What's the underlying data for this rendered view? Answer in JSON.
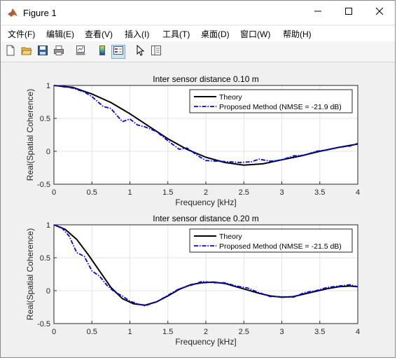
{
  "window": {
    "title": "Figure 1"
  },
  "menu": [
    {
      "label": "文件(F)"
    },
    {
      "label": "编辑(E)"
    },
    {
      "label": "查看(V)"
    },
    {
      "label": "插入(I)"
    },
    {
      "label": "工具(T)"
    },
    {
      "label": "桌面(D)"
    },
    {
      "label": "窗口(W)"
    },
    {
      "label": "帮助(H)"
    }
  ],
  "toolbar": [
    {
      "icon": "new-figure-icon"
    },
    {
      "icon": "open-file-icon"
    },
    {
      "icon": "save-icon"
    },
    {
      "icon": "print-icon"
    },
    {
      "icon": "link-plot-icon"
    },
    {
      "icon": "colorbar-icon"
    },
    {
      "icon": "legend-icon"
    },
    {
      "icon": "edit-plot-cursor-icon"
    },
    {
      "icon": "property-inspector-icon"
    }
  ],
  "colors": {
    "theory": "#000000",
    "proposed": "#0000ff"
  },
  "chart_data": [
    {
      "type": "line",
      "title": "Inter sensor distance 0.10 m",
      "xlabel": "Frequency [kHz]",
      "ylabel": "Real(Spatial Coherence)",
      "xlim": [
        0,
        4
      ],
      "ylim": [
        -0.5,
        1
      ],
      "xticks": [
        "0",
        "0.5",
        "1",
        "1.5",
        "2",
        "2.5",
        "3",
        "3.5",
        "4"
      ],
      "yticks": [
        "1",
        "0.5",
        "0",
        "-0.5"
      ],
      "grid": true,
      "legend_position": "top-right",
      "series": [
        {
          "name": "Theory",
          "x": [
            0,
            0.25,
            0.5,
            0.75,
            1.0,
            1.25,
            1.5,
            1.75,
            2.0,
            2.25,
            2.5,
            2.75,
            3.0,
            3.25,
            3.5,
            3.75,
            4.0
          ],
          "y": [
            1.0,
            0.97,
            0.87,
            0.74,
            0.57,
            0.38,
            0.19,
            0.03,
            -0.09,
            -0.17,
            -0.21,
            -0.19,
            -0.13,
            -0.07,
            0.0,
            0.06,
            0.11
          ]
        },
        {
          "name": "Proposed Method (NMSE = -21.9 dB)",
          "x": [
            0,
            0.25,
            0.4,
            0.5,
            0.65,
            0.75,
            0.9,
            1.0,
            1.1,
            1.2,
            1.35,
            1.5,
            1.65,
            1.75,
            1.9,
            2.0,
            2.15,
            2.3,
            2.45,
            2.6,
            2.7,
            2.85,
            3.0,
            3.15,
            3.3,
            3.45,
            3.6,
            3.75,
            3.9,
            4.0
          ],
          "y": [
            1.0,
            0.96,
            0.9,
            0.83,
            0.68,
            0.65,
            0.45,
            0.49,
            0.4,
            0.37,
            0.3,
            0.16,
            0.03,
            0.05,
            -0.07,
            -0.14,
            -0.15,
            -0.16,
            -0.17,
            -0.16,
            -0.12,
            -0.15,
            -0.13,
            -0.07,
            -0.06,
            0.0,
            0.02,
            0.06,
            0.08,
            0.12
          ]
        }
      ]
    },
    {
      "type": "line",
      "title": "Inter sensor distance 0.20 m",
      "xlabel": "Frequency [kHz]",
      "ylabel": "Real(Spatial Coherence)",
      "xlim": [
        0,
        4
      ],
      "ylim": [
        -0.5,
        1
      ],
      "xticks": [
        "0",
        "0.5",
        "1",
        "1.5",
        "2",
        "2.5",
        "3",
        "3.5",
        "4"
      ],
      "yticks": [
        "1",
        "0.5",
        "0",
        "-0.5"
      ],
      "grid": true,
      "legend_position": "top-right",
      "series": [
        {
          "name": "Theory",
          "x": [
            0,
            0.15,
            0.3,
            0.45,
            0.6,
            0.75,
            0.9,
            1.05,
            1.2,
            1.35,
            1.5,
            1.65,
            1.8,
            1.95,
            2.1,
            2.25,
            2.4,
            2.55,
            2.7,
            2.85,
            3.0,
            3.15,
            3.3,
            3.45,
            3.6,
            3.75,
            3.9,
            4.0
          ],
          "y": [
            1.0,
            0.93,
            0.78,
            0.55,
            0.3,
            0.05,
            -0.12,
            -0.2,
            -0.22,
            -0.17,
            -0.08,
            0.02,
            0.09,
            0.12,
            0.13,
            0.11,
            0.06,
            0.01,
            -0.04,
            -0.08,
            -0.1,
            -0.09,
            -0.05,
            -0.01,
            0.03,
            0.06,
            0.07,
            0.06
          ]
        },
        {
          "name": "Proposed Method (NMSE = -21.5 dB)",
          "x": [
            0,
            0.1,
            0.2,
            0.3,
            0.4,
            0.5,
            0.6,
            0.7,
            0.8,
            0.9,
            1.0,
            1.1,
            1.2,
            1.35,
            1.5,
            1.65,
            1.8,
            1.95,
            2.1,
            2.25,
            2.4,
            2.55,
            2.7,
            2.85,
            3.0,
            3.15,
            3.3,
            3.45,
            3.6,
            3.75,
            3.9,
            4.0
          ],
          "y": [
            1.0,
            0.96,
            0.83,
            0.58,
            0.52,
            0.3,
            0.22,
            0.08,
            -0.02,
            -0.08,
            -0.16,
            -0.2,
            -0.23,
            -0.17,
            -0.07,
            0.03,
            0.08,
            0.14,
            0.12,
            0.12,
            0.07,
            0.04,
            -0.03,
            -0.09,
            -0.09,
            -0.1,
            -0.03,
            0.0,
            0.05,
            0.07,
            0.09,
            0.06
          ]
        }
      ]
    }
  ]
}
